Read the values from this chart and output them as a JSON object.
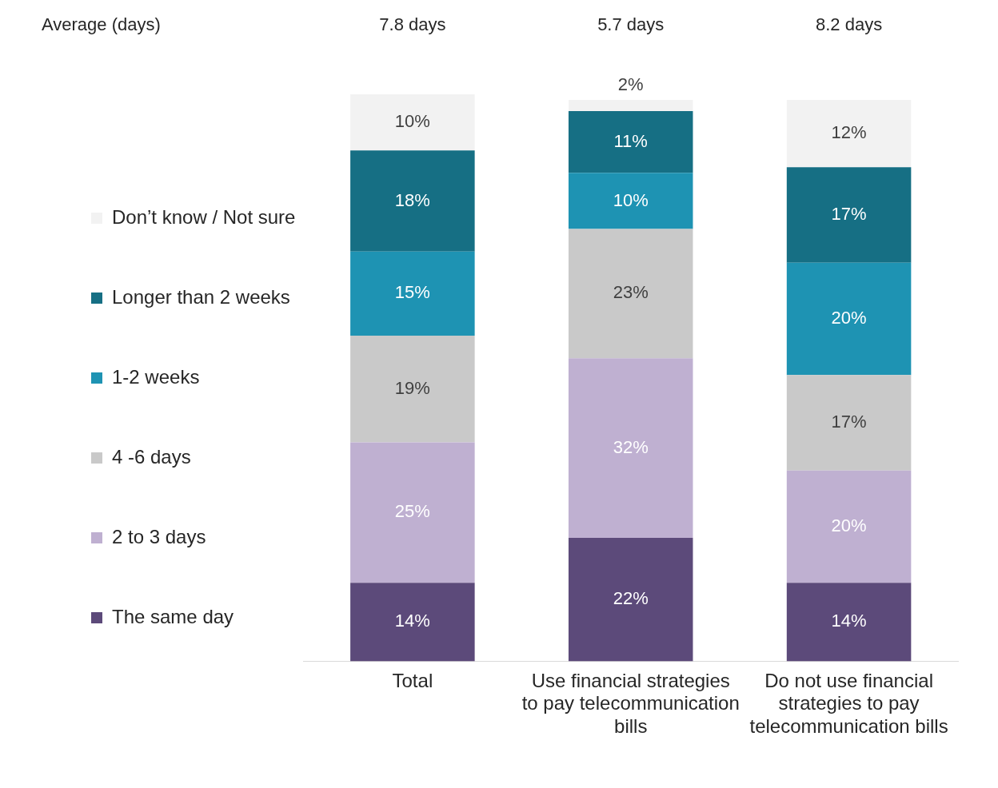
{
  "chart_data": {
    "type": "bar",
    "stacked": true,
    "legend": "left",
    "grid": false,
    "categories": [
      "Total",
      "Use financial strategies to pay telecommunication bills",
      "Do not use financial strategies to pay telecommunication bills"
    ],
    "series": [
      {
        "name": "The same day",
        "color": "#5c4a7a",
        "values": [
          14,
          22,
          14
        ],
        "value_labels": [
          "14%",
          "22%",
          "14%"
        ]
      },
      {
        "name": "2 to 3 days",
        "color": "#bfb0d1",
        "values": [
          25,
          32,
          20
        ],
        "value_labels": [
          "25%",
          "32%",
          "20%"
        ]
      },
      {
        "name": "4 -6 days",
        "color": "#c9c9c9",
        "values": [
          19,
          23,
          17
        ],
        "value_labels": [
          "19%",
          "23%",
          "17%"
        ]
      },
      {
        "name": "1-2 weeks",
        "color": "#1e93b3",
        "values": [
          15,
          10,
          20
        ],
        "value_labels": [
          "15%",
          "10%",
          "20%"
        ]
      },
      {
        "name": "Longer than 2 weeks",
        "color": "#166f84",
        "values": [
          18,
          11,
          17
        ],
        "value_labels": [
          "18%",
          "11%",
          "17%"
        ]
      },
      {
        "name": "Don’t know / Not sure",
        "color": "#f2f2f2",
        "values": [
          10,
          2,
          12
        ],
        "value_labels": [
          "10%",
          "2%",
          "12%"
        ]
      }
    ],
    "annotations": [
      "Average (days)",
      "7.8 days",
      "5.7 days",
      "8.2 days"
    ]
  }
}
